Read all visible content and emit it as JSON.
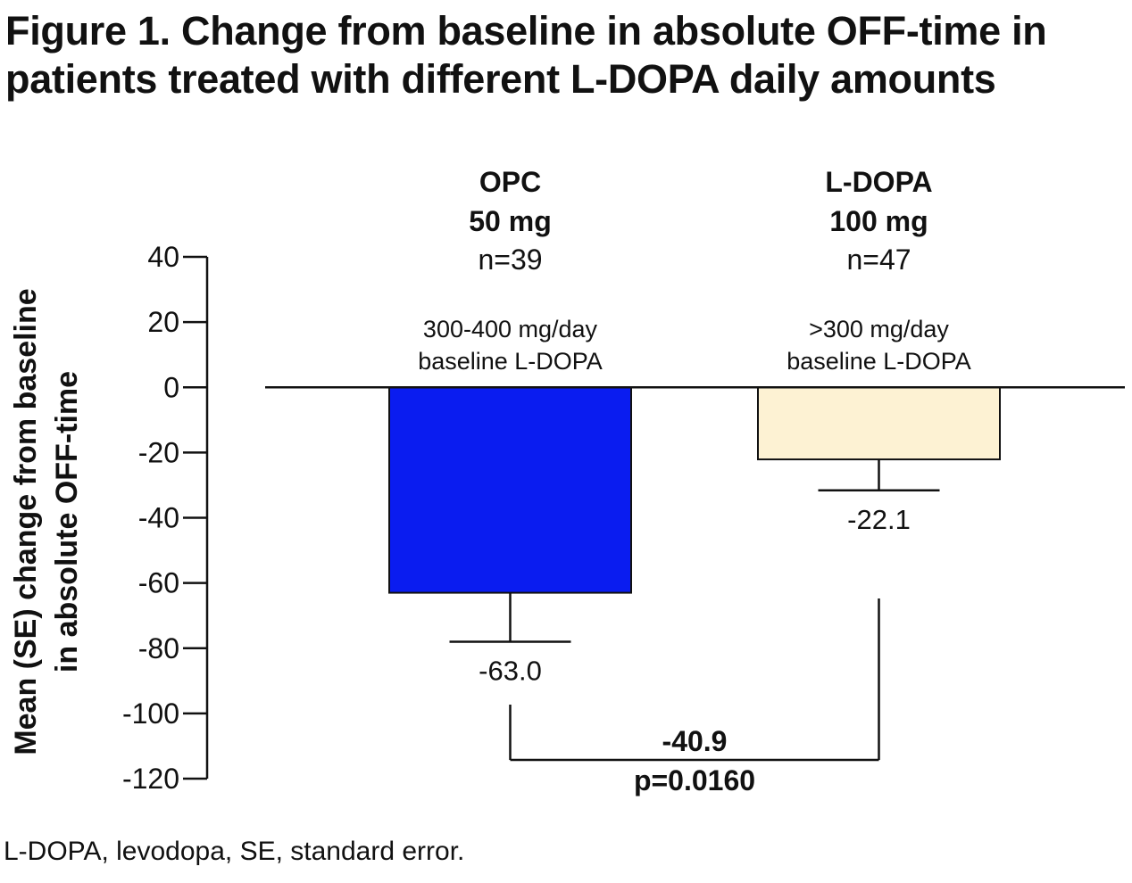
{
  "figure": {
    "title": "Figure 1. Change from baseline in absolute OFF-time in patients treated with different L-DOPA daily amounts",
    "footnote": "L-DOPA, levodopa, SE, standard error."
  },
  "chart_data": {
    "type": "bar",
    "ylabel_line1": "Mean (SE) change from baseline",
    "ylabel_line2": "in absolute OFF-time",
    "ylim": [
      -120,
      40
    ],
    "yticks": [
      40,
      20,
      0,
      -20,
      -40,
      -60,
      -80,
      -100,
      -120
    ],
    "grid": false,
    "categories": [
      {
        "name_line1": "OPC",
        "name_line2": "50 mg",
        "n_label": "n=39",
        "baseline_line1": "300-400 mg/day",
        "baseline_line2": "baseline L-DOPA",
        "value": -63.0,
        "value_label": "-63.0",
        "se": 15,
        "color": "#0a1cf0"
      },
      {
        "name_line1": "L-DOPA",
        "name_line2": "100 mg",
        "n_label": "n=47",
        "baseline_line1": ">300 mg/day",
        "baseline_line2": "baseline L-DOPA",
        "value": -22.1,
        "value_label": "-22.1",
        "se": 9.5,
        "color": "#fdf2d3"
      }
    ],
    "comparison": {
      "difference_label": "-40.9",
      "p_label": "p=0.0160"
    }
  }
}
